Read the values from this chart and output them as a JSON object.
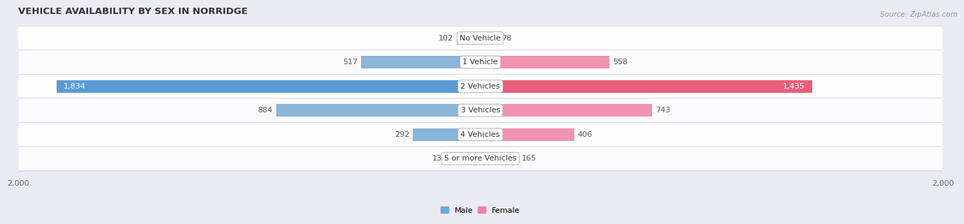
{
  "title": "VEHICLE AVAILABILITY BY SEX IN NORRIDGE",
  "source": "Source: ZipAtlas.com",
  "categories": [
    "No Vehicle",
    "1 Vehicle",
    "2 Vehicles",
    "3 Vehicles",
    "4 Vehicles",
    "5 or more Vehicles"
  ],
  "male_values": [
    102,
    517,
    1834,
    884,
    292,
    131
  ],
  "female_values": [
    78,
    558,
    1435,
    743,
    406,
    165
  ],
  "male_color": "#8ab4d8",
  "female_color": "#f093b0",
  "male_color_strong": "#5b9bd5",
  "female_color_strong": "#e8607a",
  "row_bg_color_light": "#f2f2f7",
  "row_bg_color_dark": "#eaeaf2",
  "xlim": 2000,
  "bar_height": 0.52,
  "legend_male_color": "#6aaad8",
  "legend_female_color": "#f080a0",
  "title_fontsize": 9.5,
  "label_fontsize": 8,
  "axis_fontsize": 8,
  "source_fontsize": 7.5
}
